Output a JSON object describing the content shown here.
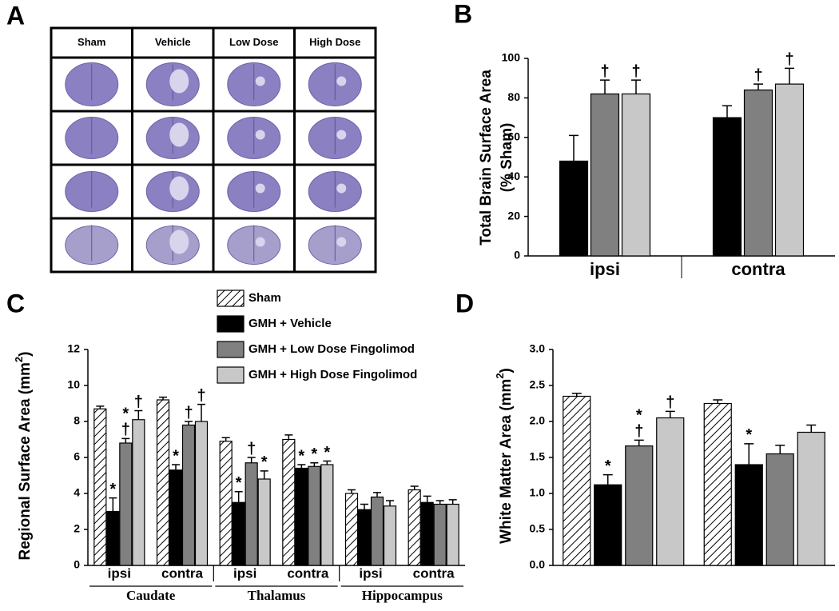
{
  "panel_labels": [
    "A",
    "B",
    "C",
    "D"
  ],
  "image_grid": {
    "headers": [
      "Sham",
      "Vehicle",
      "Low Dose",
      "High Dose"
    ]
  },
  "chart_data": [
    {
      "type": "bar",
      "ylabel": [
        "Total Brain Surface Area",
        "(% Sham)"
      ],
      "categories": [
        "ipsi",
        "contra"
      ],
      "ylim": [
        0,
        100
      ],
      "yticks": [
        0,
        20,
        40,
        60,
        80,
        100
      ],
      "series": [
        {
          "color": "#000000",
          "values": [
            48,
            70
          ],
          "errors": [
            13,
            6
          ]
        },
        {
          "color": "#808080",
          "values": [
            82,
            84
          ],
          "errors": [
            7,
            3
          ],
          "markers": [
            [
              "†"
            ],
            [
              "†"
            ]
          ]
        },
        {
          "color": "#c8c8c8",
          "values": [
            82,
            87
          ],
          "errors": [
            7,
            8
          ],
          "markers": [
            [
              "†"
            ],
            [
              "†"
            ]
          ]
        }
      ]
    },
    {
      "type": "bar",
      "ylabel": [
        "Regional Surface Area (mm",
        "2",
        ")"
      ],
      "categories": [
        "ipsi",
        "contra",
        "ipsi",
        "contra",
        "ipsi",
        "contra"
      ],
      "groups": [
        "Caudate",
        "Thalamus",
        "Hippocampus"
      ],
      "ylim": [
        0,
        12
      ],
      "yticks": [
        0,
        2,
        4,
        6,
        8,
        10,
        12
      ],
      "series": [
        {
          "name": "Sham",
          "color": "#ffffff",
          "pattern": "hatch",
          "values": [
            8.7,
            9.2,
            6.9,
            7.0,
            4.0,
            4.2
          ],
          "errors": [
            0.15,
            0.15,
            0.2,
            0.25,
            0.2,
            0.2
          ]
        },
        {
          "name": "GMH + Vehicle",
          "color": "#000000",
          "values": [
            3.0,
            5.3,
            3.5,
            5.4,
            3.1,
            3.5
          ],
          "errors": [
            0.75,
            0.3,
            0.6,
            0.2,
            0.3,
            0.35
          ],
          "markers": [
            [
              "*"
            ],
            [
              "*"
            ],
            [
              "*"
            ],
            [
              "*"
            ],
            null,
            null
          ]
        },
        {
          "name": "GMH + Low Dose Fingolimod",
          "color": "#808080",
          "values": [
            6.8,
            7.8,
            5.7,
            5.5,
            3.8,
            3.4
          ],
          "errors": [
            0.25,
            0.2,
            0.3,
            0.2,
            0.25,
            0.2
          ],
          "markers": [
            [
              "*",
              "†"
            ],
            [
              "†"
            ],
            [
              "†"
            ],
            [
              "*"
            ],
            null,
            null
          ]
        },
        {
          "name": "GMH + High Dose Fingolimod",
          "color": "#c8c8c8",
          "values": [
            8.1,
            8.0,
            4.8,
            5.6,
            3.3,
            3.4
          ],
          "errors": [
            0.5,
            0.95,
            0.45,
            0.2,
            0.3,
            0.25
          ],
          "markers": [
            [
              "†"
            ],
            [
              "†"
            ],
            [
              "*"
            ],
            [
              "*"
            ],
            null,
            null
          ]
        }
      ]
    },
    {
      "type": "bar",
      "ylabel": [
        "White Matter Area (mm",
        "2",
        ")"
      ],
      "categories": [
        null,
        null
      ],
      "ylim": [
        0,
        3
      ],
      "yticks": [
        {
          "value": 0,
          "label": "0.0"
        },
        0.5,
        {
          "value": 1,
          "label": "1.0"
        },
        1.5,
        {
          "value": 2,
          "label": "2.0"
        },
        2.5,
        {
          "value": 3,
          "label": "3.0"
        }
      ],
      "series": [
        {
          "color": "#ffffff",
          "pattern": "hatch",
          "values": [
            2.35,
            2.25
          ],
          "errors": [
            0.04,
            0.05
          ]
        },
        {
          "color": "#000000",
          "values": [
            1.12,
            1.4
          ],
          "errors": [
            0.14,
            0.29
          ],
          "markers": [
            [
              "*"
            ],
            [
              "*"
            ]
          ]
        },
        {
          "color": "#808080",
          "values": [
            1.66,
            1.55
          ],
          "errors": [
            0.08,
            0.12
          ],
          "markers": [
            [
              "*",
              "†"
            ],
            null
          ]
        },
        {
          "color": "#c8c8c8",
          "values": [
            2.05,
            1.85
          ],
          "errors": [
            0.09,
            0.1
          ],
          "markers": [
            [
              "†"
            ],
            null
          ]
        }
      ]
    }
  ]
}
